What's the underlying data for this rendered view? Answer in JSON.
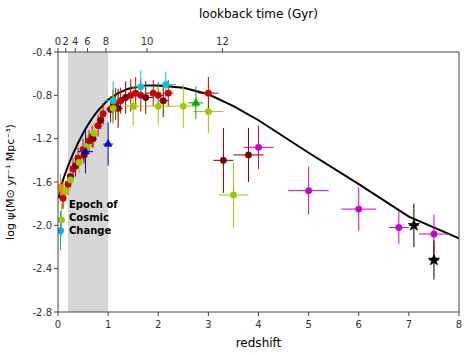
{
  "chart_data": {
    "type": "scatter",
    "xlabel": "redshift",
    "ylabel": "log ψ(M⊙ yr⁻¹ Mpc⁻³)",
    "x2label": "lookback time (Gyr)",
    "xlim": [
      0,
      8
    ],
    "ylim": [
      -2.8,
      -0.4
    ],
    "xticks": [
      0,
      1,
      2,
      3,
      4,
      5,
      6,
      7,
      8
    ],
    "yticks": [
      -2.8,
      -2.4,
      {
        "value": -2.0,
        "label": "-2.0"
      },
      -1.6,
      -1.2,
      -0.8,
      -0.4
    ],
    "x2ticks": [
      0,
      2,
      4,
      6,
      8,
      10,
      12
    ],
    "x2ticks_redshift": [
      0.0,
      0.155,
      0.345,
      0.588,
      0.958,
      1.776,
      3.28
    ],
    "grid": false,
    "shaded_x": [
      0.2,
      1.0
    ],
    "annotations": [
      {
        "text": "Epoch of\nCosmic\nChange",
        "x": 0.22,
        "y": -1.92
      }
    ],
    "series": [
      {
        "type": "line",
        "color": "#000000",
        "line_style": "solid",
        "x": [
          0.01,
          0.05,
          0.1,
          0.2,
          0.3,
          0.4,
          0.5,
          0.6,
          0.7,
          0.8,
          0.9,
          1.0,
          1.2,
          1.4,
          1.6,
          1.8,
          2.0,
          2.5,
          3.0,
          3.5,
          4.0,
          5.0,
          6.0,
          7.0,
          8.0
        ],
        "values": [
          -1.75,
          -1.68,
          -1.58,
          -1.45,
          -1.34,
          -1.24,
          -1.15,
          -1.07,
          -1.0,
          -0.94,
          -0.89,
          -0.84,
          -0.78,
          -0.74,
          -0.72,
          -0.71,
          -0.71,
          -0.73,
          -0.79,
          -0.9,
          -1.03,
          -1.33,
          -1.62,
          -1.92,
          -2.12
        ]
      },
      {
        "type": "scatter",
        "x": [
          0.05,
          0.1,
          0.05,
          0.07,
          0.1,
          0.15,
          0.2,
          0.25,
          0.25,
          0.3,
          0.35,
          0.4,
          0.42,
          0.5,
          0.52,
          0.58,
          0.62,
          0.68,
          0.7,
          0.72,
          0.8,
          0.85,
          0.9,
          0.55,
          1.0,
          1.05,
          1.1,
          1.15,
          1.2,
          1.25,
          1.35,
          1.45,
          1.55,
          1.65,
          1.75,
          1.9,
          2.0,
          2.1,
          2.2,
          1.1,
          1.65,
          2.15,
          1.1,
          1.5,
          2.0,
          2.5,
          3.0,
          2.75,
          3.0,
          3.3,
          3.8,
          3.5,
          4.0,
          5.0,
          6.0,
          6.8,
          7.5,
          7.1,
          7.5
        ],
        "values": [
          -1.65,
          -1.72,
          -2.05,
          -1.95,
          -1.75,
          -1.68,
          -1.62,
          -1.55,
          -1.58,
          -1.48,
          -1.45,
          -1.38,
          -1.42,
          -1.3,
          -1.35,
          -1.27,
          -1.22,
          -1.18,
          -1.2,
          -1.15,
          -1.08,
          -1.03,
          -0.97,
          -1.32,
          -1.25,
          -0.93,
          -0.9,
          -0.88,
          -0.92,
          -0.85,
          -0.82,
          -0.8,
          -0.78,
          -0.8,
          -0.82,
          -0.78,
          -0.8,
          -0.85,
          -0.78,
          -0.85,
          -0.72,
          -0.7,
          -0.92,
          -0.9,
          -0.9,
          -0.9,
          -0.95,
          -0.87,
          -0.78,
          -1.4,
          -1.35,
          -1.72,
          -1.28,
          -1.68,
          -1.85,
          -2.02,
          -2.08,
          -2.0,
          -2.32
        ],
        "xerr": [
          0.05,
          0.05,
          0.03,
          0.04,
          0.05,
          0.05,
          0.05,
          0.05,
          0.05,
          0.06,
          0.06,
          0.05,
          0.06,
          0.06,
          0.05,
          0.06,
          0.06,
          0.06,
          0.06,
          0.05,
          0.08,
          0.05,
          0.06,
          0.15,
          0.1,
          0.08,
          0.08,
          0.08,
          0.1,
          0.08,
          0.1,
          0.1,
          0.12,
          0.12,
          0.15,
          0.15,
          0.12,
          0.1,
          0.1,
          0.18,
          0.2,
          0.2,
          0.15,
          0.2,
          0.25,
          0.3,
          0.3,
          0.15,
          0.2,
          0.2,
          0.3,
          0.3,
          0.3,
          0.4,
          0.35,
          0.2,
          0.3,
          0.1,
          0.1
        ],
        "yerr": [
          0.12,
          0.12,
          0.18,
          0.15,
          0.1,
          0.1,
          0.1,
          0.1,
          0.1,
          0.1,
          0.1,
          0.1,
          0.1,
          0.1,
          0.08,
          0.1,
          0.1,
          0.1,
          0.08,
          0.1,
          0.1,
          0.08,
          0.1,
          0.2,
          0.2,
          0.12,
          0.15,
          0.15,
          0.18,
          0.12,
          0.15,
          0.15,
          0.15,
          0.15,
          0.15,
          0.12,
          0.12,
          0.15,
          0.12,
          0.18,
          0.15,
          0.12,
          0.15,
          0.18,
          0.18,
          0.2,
          0.2,
          0.15,
          0.15,
          0.3,
          0.25,
          0.3,
          0.2,
          0.22,
          0.2,
          0.15,
          0.18,
          0.2,
          0.18
        ],
        "colors": [
          "#ff8800",
          "#ff8800",
          "#00aaff",
          "#99cc00",
          "#cc0000",
          "#99cc00",
          "#cc0000",
          "#800000",
          "#99cc00",
          "#cc0000",
          "#800000",
          "#cc0000",
          "#99cc00",
          "#cc0000",
          "#800000",
          "#99cc00",
          "#cc0000",
          "#cc0000",
          "#800000",
          "#99cc00",
          "#cc0000",
          "#800000",
          "#cc0000",
          "#0000cc",
          "#0000cc",
          "#800000",
          "#800000",
          "#cc0000",
          "#800000",
          "#cc0000",
          "#800000",
          "#cc0000",
          "#cc0000",
          "#cc0000",
          "#800000",
          "#cc0000",
          "#cc0000",
          "#800000",
          "#cc0000",
          "#00cccc",
          "#00cccc",
          "#00cccc",
          "#99cc00",
          "#99cc00",
          "#99cc00",
          "#99cc00",
          "#99cc00",
          "#00aa00",
          "#cc0000",
          "#800000",
          "#800000",
          "#99cc00",
          "#cc00cc",
          "#cc00cc",
          "#cc00cc",
          "#cc00cc",
          "#cc00cc",
          "#000000",
          "#000000"
        ],
        "markers": [
          "square",
          "square",
          "circle",
          "circle",
          "circle",
          "circle",
          "circle",
          "circle",
          "circle",
          "circle",
          "circle",
          "circle",
          "circle",
          "circle",
          "circle",
          "circle",
          "circle",
          "circle",
          "circle",
          "circle",
          "circle",
          "circle",
          "circle",
          "triangle",
          "triangle",
          "circle",
          "circle",
          "circle",
          "circle",
          "circle",
          "circle",
          "circle",
          "circle",
          "circle",
          "circle",
          "circle",
          "circle",
          "circle",
          "circle",
          "circle",
          "circle",
          "circle",
          "circle",
          "circle",
          "circle",
          "circle",
          "circle",
          "triangle",
          "circle",
          "circle",
          "circle",
          "circle",
          "circle",
          "circle",
          "circle",
          "circle",
          "circle",
          "star",
          "star"
        ]
      }
    ]
  }
}
